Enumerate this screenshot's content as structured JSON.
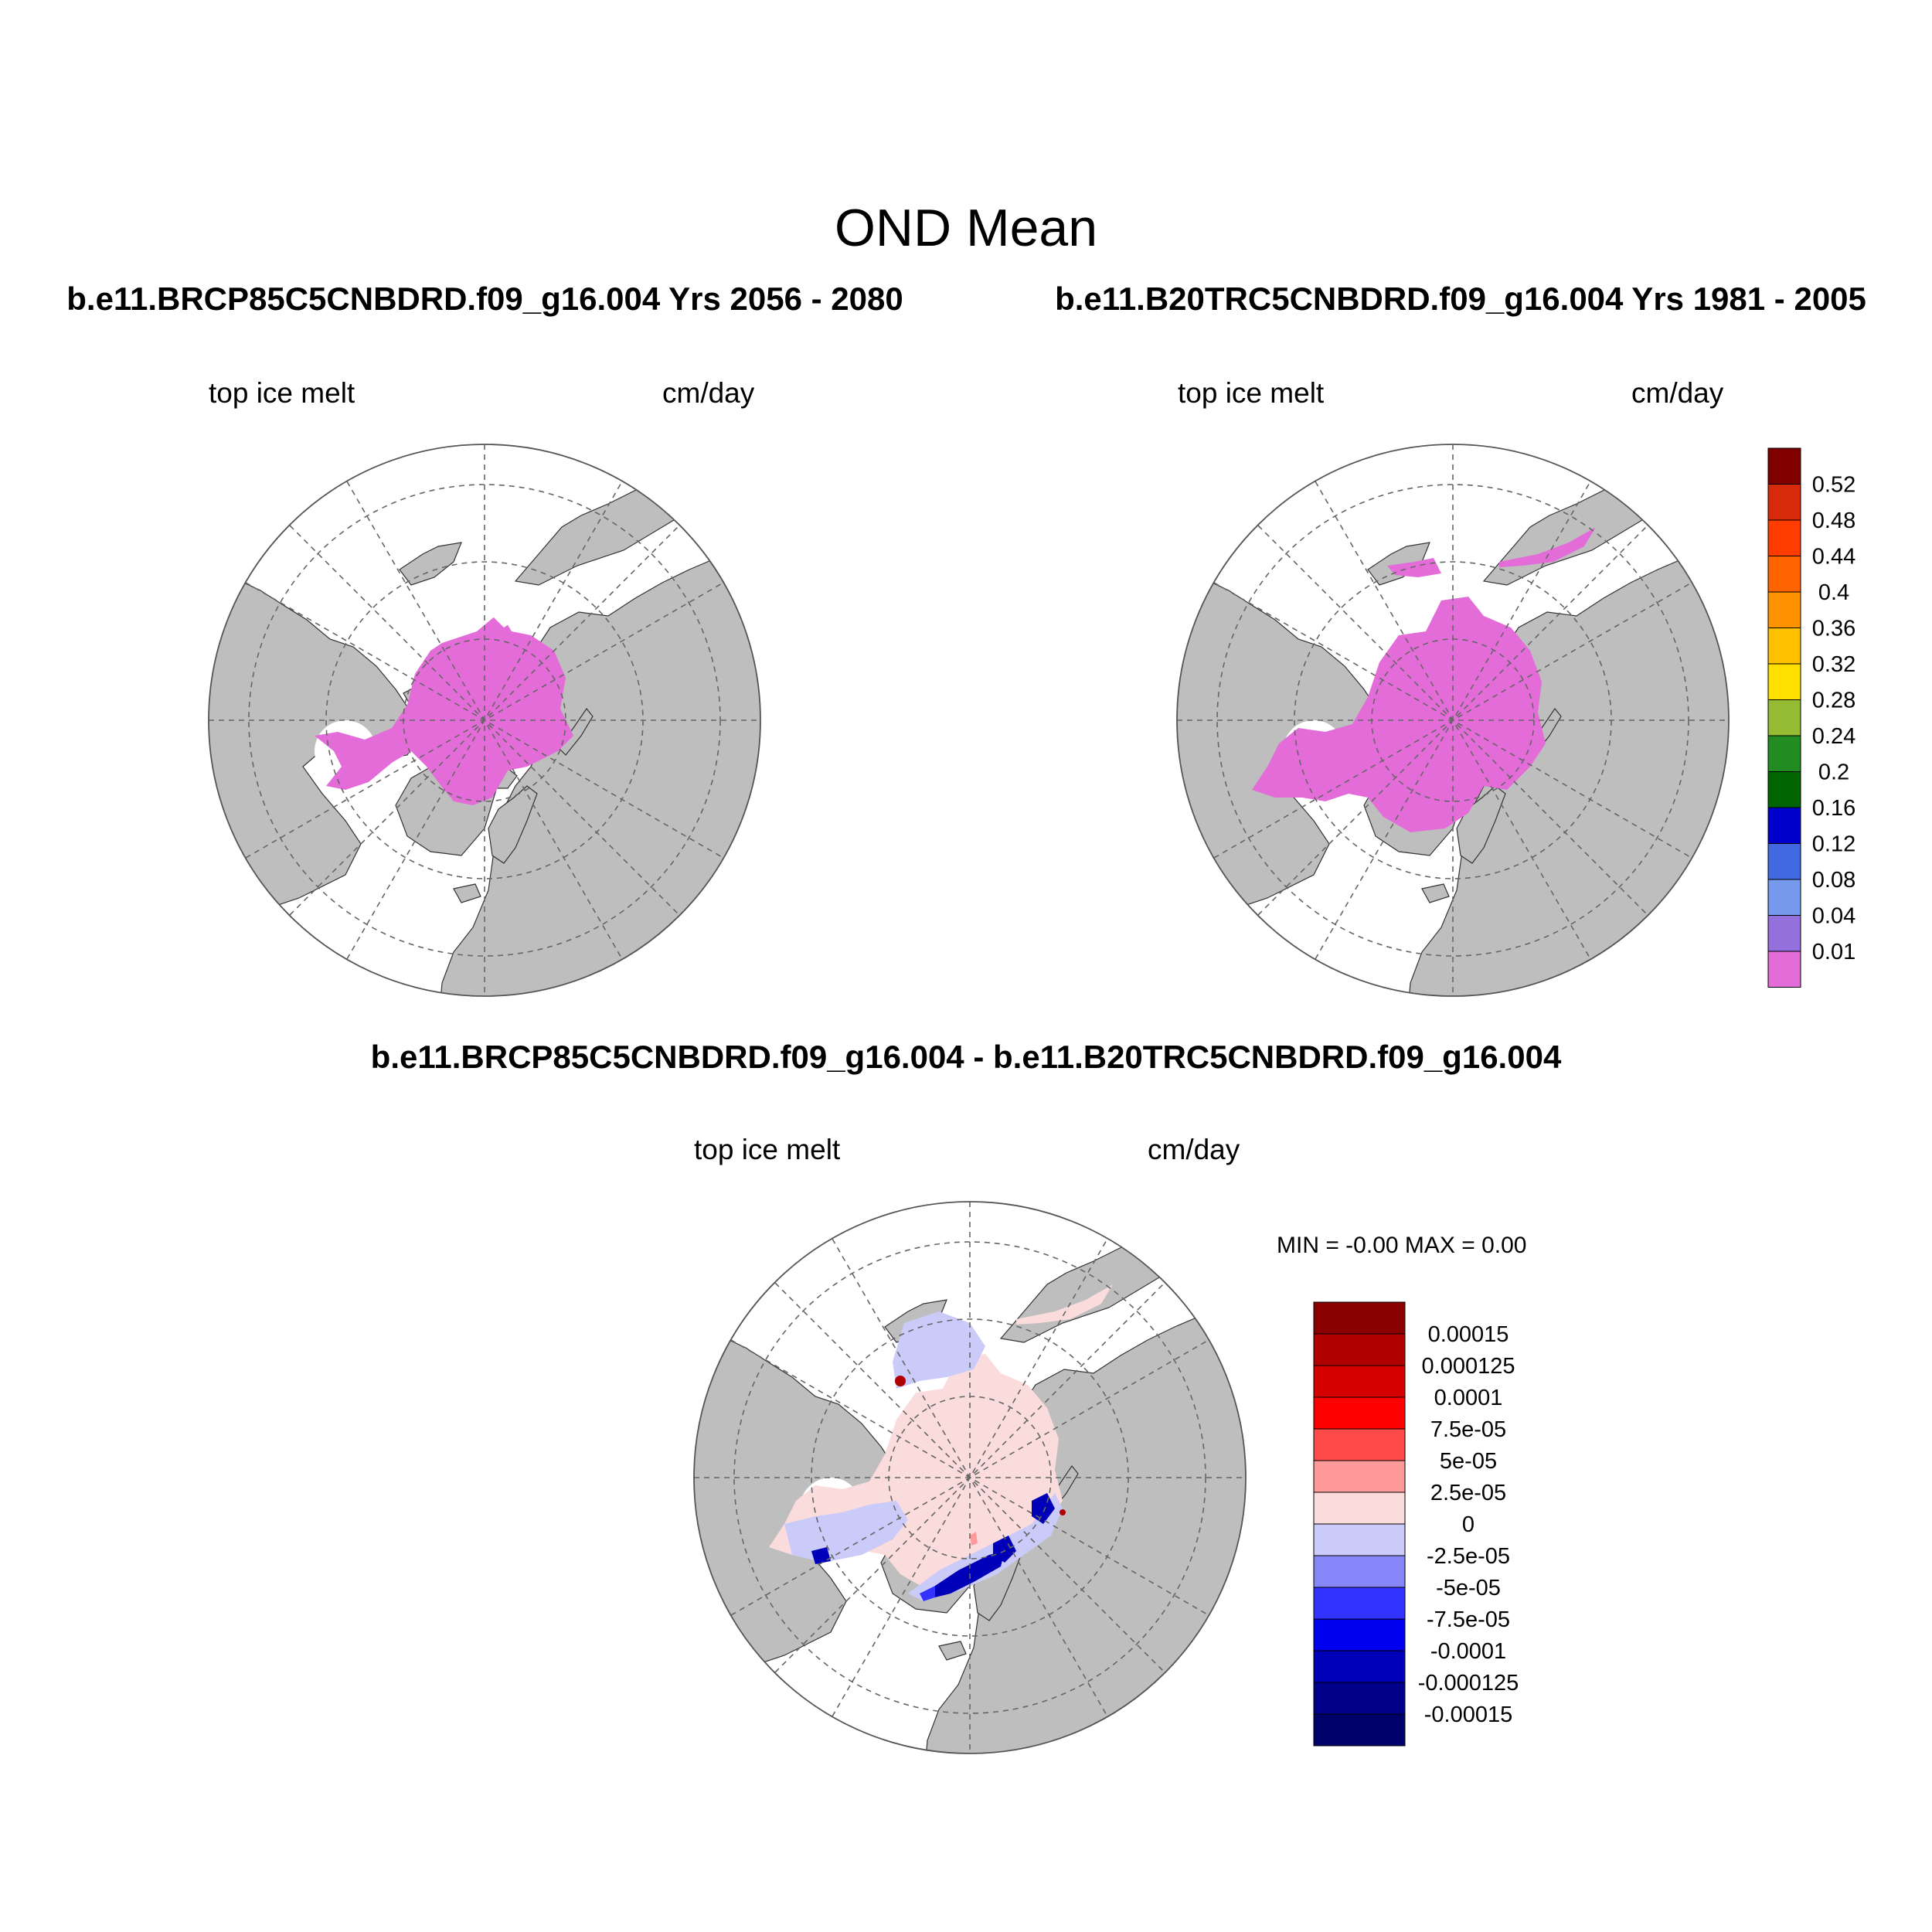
{
  "title": "OND Mean",
  "panels": [
    {
      "id": "future",
      "title": "b.e11.BRCP85C5CNBDRD.f09_g16.004  Yrs 2056 - 2080",
      "variable_label": "top ice melt",
      "units_label": "cm/day"
    },
    {
      "id": "historical",
      "title": "b.e11.B20TRC5CNBDRD.f09_g16.004  Yrs 1981 - 2005",
      "variable_label": "top ice melt",
      "units_label": "cm/day"
    },
    {
      "id": "difference",
      "title": "b.e11.BRCP85C5CNBDRD.f09_g16.004 - b.e11.B20TRC5CNBDRD.f09_g16.004",
      "variable_label": "top ice melt",
      "units_label": "cm/day",
      "min_max": "MIN =  -0.00 MAX =   0.00"
    }
  ],
  "colorbar_top": {
    "labels": [
      "0.52",
      "0.48",
      "0.44",
      "0.4",
      "0.36",
      "0.32",
      "0.28",
      "0.24",
      "0.2",
      "0.16",
      "0.12",
      "0.08",
      "0.04",
      "0.01"
    ],
    "colors": [
      "#800000",
      "#d62a0a",
      "#ff3c00",
      "#ff6400",
      "#ff9200",
      "#ffc000",
      "#ffdf00",
      "#95bb35",
      "#228b22",
      "#006400",
      "#0000cd",
      "#4169e1",
      "#7799ee",
      "#9370db",
      "#e36cd9"
    ]
  },
  "colorbar_diff": {
    "labels": [
      "0.00015",
      "0.000125",
      "0.0001",
      "7.5e-05",
      "5e-05",
      "2.5e-05",
      "0",
      "-2.5e-05",
      "-5e-05",
      "-7.5e-05",
      "-0.0001",
      "-0.000125",
      "-0.00015"
    ],
    "colors": [
      "#8b0000",
      "#b00000",
      "#d40000",
      "#ff0000",
      "#ff4a4a",
      "#ff9a9a",
      "#fbdcdc",
      "#cbcbf9",
      "#8686f9",
      "#3333ff",
      "#0000ee",
      "#0000b8",
      "#00008b",
      "#00006b"
    ]
  },
  "map_colors": {
    "land": "#bebebe",
    "ocean": "#ffffff",
    "melt": "#e36cd9",
    "diff_zero_pos": "#fbdcdc",
    "diff_zero_neg": "#cbcbf9",
    "diff_neg_strong": "#0000b8",
    "diff_neg_mid": "#3333ff",
    "diff_pos_strong": "#b00000",
    "diff_pos_mid": "#ff9a9a"
  }
}
